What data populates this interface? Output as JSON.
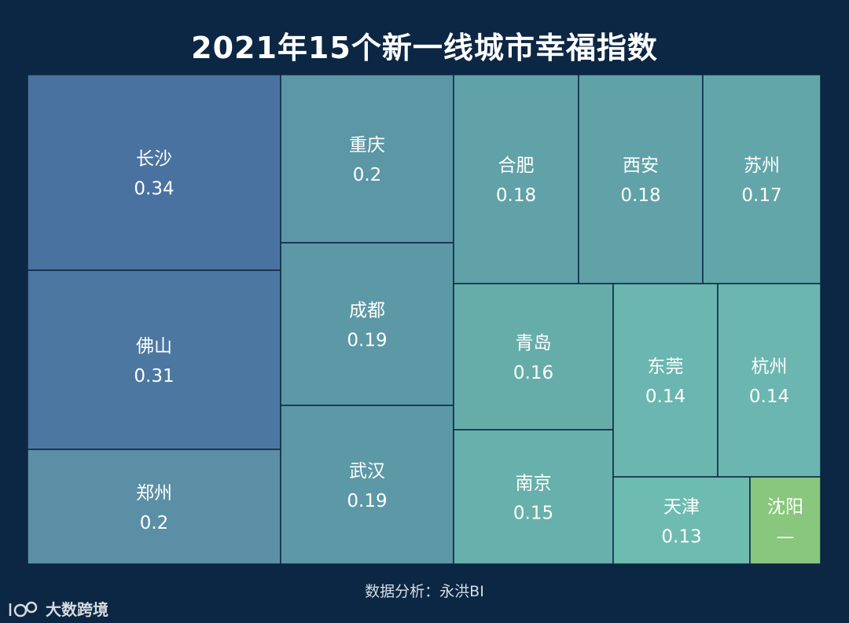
{
  "chart_data": {
    "type": "treemap",
    "title": "2021年15个新一线城市幸福指数",
    "items": [
      {
        "name": "长沙",
        "value": 0.34,
        "label": "0.34",
        "color": "#4a72a0"
      },
      {
        "name": "佛山",
        "value": 0.31,
        "label": "0.31",
        "color": "#4c77a1"
      },
      {
        "name": "郑州",
        "value": 0.2,
        "label": "0.2",
        "color": "#5b8fa5"
      },
      {
        "name": "重庆",
        "value": 0.2,
        "label": "0.2",
        "color": "#5c97a6"
      },
      {
        "name": "成都",
        "value": 0.19,
        "label": "0.19",
        "color": "#5d98a6"
      },
      {
        "name": "武汉",
        "value": 0.19,
        "label": "0.19",
        "color": "#5d98a6"
      },
      {
        "name": "合肥",
        "value": 0.18,
        "label": "0.18",
        "color": "#60a2a8"
      },
      {
        "name": "西安",
        "value": 0.18,
        "label": "0.18",
        "color": "#60a2a8"
      },
      {
        "name": "苏州",
        "value": 0.17,
        "label": "0.17",
        "color": "#63a6a9"
      },
      {
        "name": "青岛",
        "value": 0.16,
        "label": "0.16",
        "color": "#66adaa"
      },
      {
        "name": "南京",
        "value": 0.15,
        "label": "0.15",
        "color": "#68b0ab"
      },
      {
        "name": "东莞",
        "value": 0.14,
        "label": "0.14",
        "color": "#6bb6b0"
      },
      {
        "name": "杭州",
        "value": 0.14,
        "label": "0.14",
        "color": "#6bb6b0"
      },
      {
        "name": "天津",
        "value": 0.13,
        "label": "0.13",
        "color": "#6ebbb0"
      },
      {
        "name": "沈阳",
        "value": null,
        "label": "—",
        "color": "#88c77d"
      }
    ]
  },
  "source_note": "数据分析：永洪BI",
  "watermark": {
    "text": "大数跨境",
    "logo": "100-logo-icon"
  }
}
